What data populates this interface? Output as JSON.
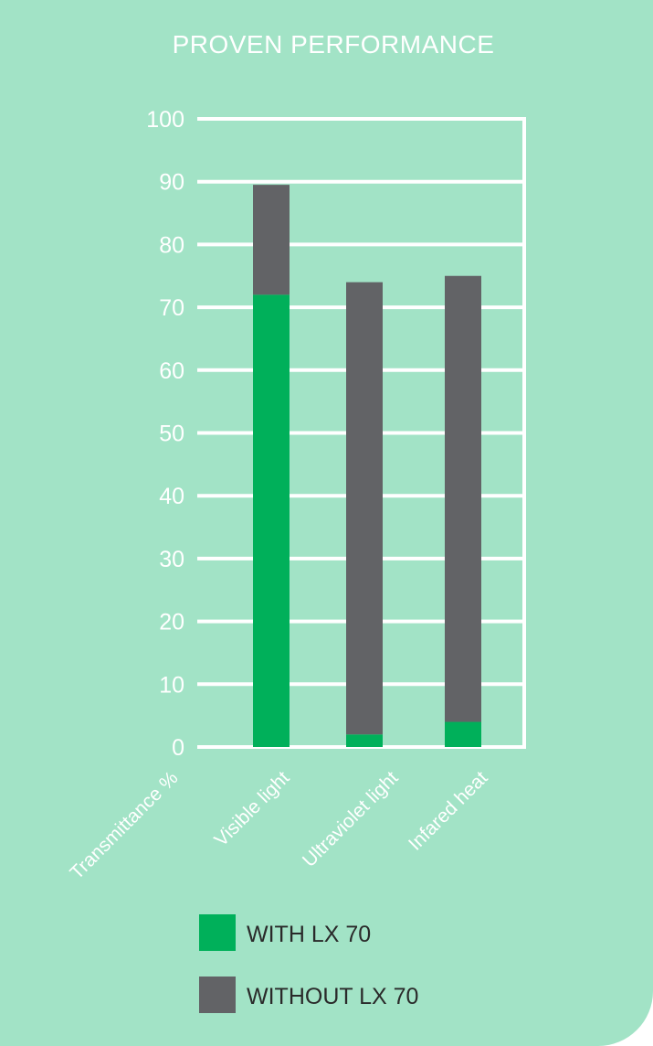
{
  "chart_data": {
    "type": "bar",
    "stacked": true,
    "title": "PROVEN PERFORMANCE",
    "ylabel": "Transmittance %",
    "categories": [
      "Visible light",
      "Ultraviolet light",
      "Infared heat"
    ],
    "series": [
      {
        "name": "WITH LX 70",
        "values": [
          72,
          2,
          4
        ],
        "color": "#00b05a"
      },
      {
        "name": "WITHOUT LX 70",
        "values": [
          17.5,
          72,
          71
        ],
        "color": "#626366"
      }
    ],
    "ylim": [
      0,
      100
    ],
    "yticks": [
      0,
      10,
      20,
      30,
      40,
      50,
      60,
      70,
      80,
      90,
      100
    ],
    "grid": true,
    "legend_position": "bottom"
  },
  "colors": {
    "background": "#a2e3c6",
    "grid": "#ffffff",
    "text": "#ffffff"
  }
}
